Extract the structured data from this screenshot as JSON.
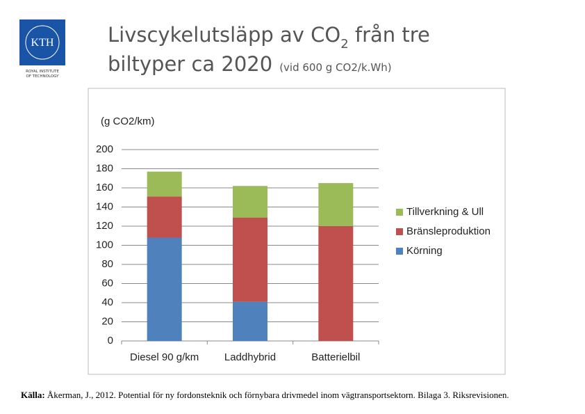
{
  "logo": {
    "text": "KTH",
    "caption": [
      "ROYAL INSTITUTE",
      "OF TECHNOLOGY"
    ]
  },
  "header": {
    "title_parts": [
      "Livscykelutsläpp av CO",
      "2",
      " från tre",
      "biltyper ca 2020"
    ],
    "note": "(vid 600 g CO2/k.Wh)"
  },
  "chart_data": {
    "type": "stacked_bar",
    "ylabel": "(g CO2/km)",
    "categories": [
      "Diesel 90 g/km",
      "Laddhybrid",
      "Batterielbil"
    ],
    "series": [
      {
        "name": "Körning",
        "color": "#4f81bd",
        "values": [
          108,
          41,
          0
        ]
      },
      {
        "name": "Bränsleproduktion",
        "color": "#c0504d",
        "values": [
          43,
          88,
          120
        ]
      },
      {
        "name": "Tillverkning & Ull",
        "color": "#9bbb59",
        "values": [
          26,
          33,
          45
        ]
      }
    ],
    "ylim": [
      0,
      200
    ],
    "yticks": [
      0,
      20,
      40,
      60,
      80,
      100,
      120,
      140,
      160,
      180,
      200
    ],
    "grid": true,
    "legend": "right"
  },
  "source": {
    "label": "Källa:",
    "text": " Åkerman, J., 2012. Potential för ny fordonsteknik och förnybara drivmedel inom vägtransportsektorn. Bilaga 3. Riksrevisionen."
  }
}
